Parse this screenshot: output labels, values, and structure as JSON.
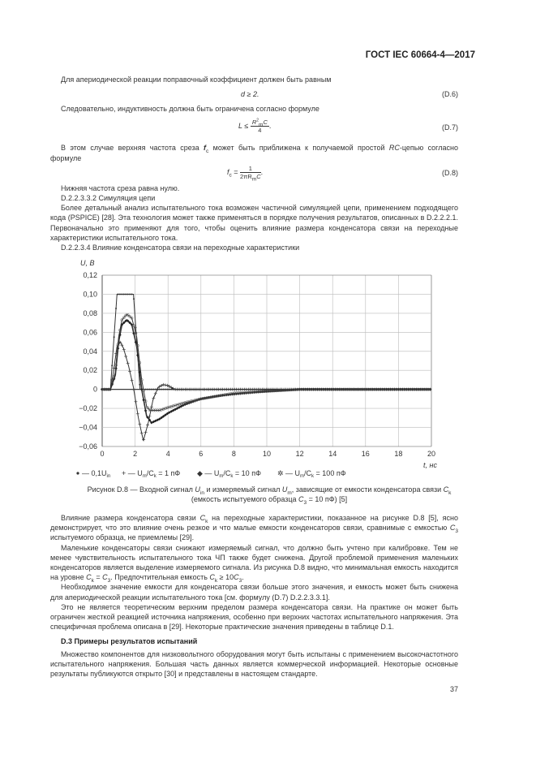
{
  "header": {
    "doc_id": "ГОСТ IEC 60664-4—2017"
  },
  "p1": "Для апериодической реакции поправочный коэффициент должен быть равным",
  "eq_d6": {
    "expr": "d ≥ 2.",
    "num": "(D.6)"
  },
  "p2": "Следовательно, индуктивность должна быть ограничена согласно формуле",
  "eq_d7": {
    "lhs": "L ≤",
    "num_r": "R",
    "num_sup": "2",
    "num_sub": "m",
    "num_c": "C",
    "den": "4",
    "num": "(D.7)"
  },
  "p3": [
    "В этом случае верхняя частота среза ",
    "f",
    "c",
    " может быть приближена к получаемой простой ",
    "RC",
    "-цепью согласно формуле"
  ],
  "eq_d8": {
    "lhs": "f",
    "lhs_sub": "c",
    "eq": " =",
    "numr": "1",
    "den_a": "2πR",
    "den_sub": "m",
    "den_c": "C",
    "num": "(D.8)"
  },
  "p4": "Нижняя частота среза равна нулю.",
  "p5": "D.2.2.3.3.2 Симуляция цепи",
  "p6": "Более детальный анализ испытательного тока возможен частичной симуляцией цепи, применением подходящего кода (PSPICE) [28]. Эта технология может также применяться в порядке получения результатов, описанных в D.2.2.2.1. Первоначально это применяют для того, чтобы оценить влияние размера конденсатора связи на переходные характеристики испытательного тока.",
  "p7": "D.2.2.3.4 Влияние конденсатора связи на переходные характеристики",
  "chart_data": {
    "type": "line",
    "ylabel": "U, В",
    "xlabel": "t, нс",
    "xlim": [
      0,
      20
    ],
    "ylim": [
      -0.06,
      0.12
    ],
    "xticks": [
      "0",
      "2",
      "4",
      "6",
      "8",
      "10",
      "12",
      "14",
      "16",
      "18",
      "20"
    ],
    "yticks": [
      "0,12",
      "0,10",
      "0,08",
      "0,06",
      "0,04",
      "0,02",
      "0",
      "−0,02",
      "−0,04",
      "−0,06"
    ],
    "grid": true,
    "legend": "bottom",
    "series": [
      {
        "name": "— 0,1U",
        "name_sub": "in",
        "marker": "dot",
        "x": [
          0,
          0.5,
          0.9,
          1.9,
          2.3,
          3,
          20
        ],
        "y": [
          0,
          0,
          0.1,
          0.1,
          0,
          0,
          0
        ]
      },
      {
        "name": "— U",
        "name_sub": "m",
        "name_rest": "/C",
        "name_sub2": "k",
        "name_end": " = 1 пФ",
        "marker": "plus",
        "x": [
          0,
          0.5,
          0.7,
          0.9,
          1.1,
          1.3,
          1.6,
          1.9,
          2.2,
          2.5,
          2.8,
          3.1,
          3.4,
          3.7,
          4.0,
          4.4,
          5,
          20
        ],
        "y": [
          0,
          0,
          0.02,
          0.045,
          0.05,
          0.043,
          0.025,
          0.002,
          -0.03,
          -0.054,
          -0.035,
          -0.01,
          0.002,
          0.005,
          0.004,
          0,
          0,
          0
        ]
      },
      {
        "name": "— U",
        "name_sub": "m",
        "name_rest": "/C",
        "name_sub2": "k",
        "name_end": " = 10 пФ",
        "marker": "diamond",
        "x": [
          0,
          0.5,
          0.8,
          1.0,
          1.2,
          1.5,
          1.8,
          2.1,
          2.4,
          2.7,
          3.0,
          3.5,
          4.0,
          5,
          6,
          7,
          8,
          10,
          12,
          20
        ],
        "y": [
          0,
          0,
          0.015,
          0.05,
          0.068,
          0.073,
          0.068,
          0.045,
          0.0,
          -0.028,
          -0.035,
          -0.031,
          -0.025,
          -0.016,
          -0.01,
          -0.007,
          -0.005,
          -0.002,
          0,
          0
        ]
      },
      {
        "name": "— U",
        "name_sub": "m",
        "name_rest": "/C",
        "name_sub2": "k",
        "name_end": " = 100 пФ",
        "marker": "star",
        "x": [
          0,
          0.5,
          0.8,
          1.0,
          1.2,
          1.5,
          1.8,
          2.1,
          2.4,
          2.7,
          2.9,
          3.5,
          4.0,
          5,
          6,
          7,
          8,
          10,
          12,
          20
        ],
        "y": [
          0,
          0,
          0.018,
          0.055,
          0.073,
          0.079,
          0.075,
          0.055,
          0.01,
          -0.018,
          -0.022,
          -0.022,
          -0.019,
          -0.014,
          -0.01,
          -0.007,
          -0.004,
          -0.002,
          0,
          0
        ]
      }
    ]
  },
  "caption": {
    "l1a": "Рисунок D.8 — Входной сигнал ",
    "U1": "U",
    "s1": "in",
    "l1b": " и измеряемый сигнал ",
    "U2": "U",
    "s2": "m",
    "l1c": ", зависящие от емкости конденсатора связи ",
    "C": "C",
    "s3": "k",
    "l2a": "(емкость испытуемого образца ",
    "C3": "C",
    "s4": "3",
    "l2b": " = 10 пФ) [5]"
  },
  "p8": [
    "Влияние размера конденсатора связи ",
    "C",
    "k",
    " на переходные характеристики, показанное на рисунке D.8 [5], ясно демонстрирует, что это влияние очень резкое и что малые емкости конденсаторов связи, сравнимые с емкостью ",
    "C",
    "3",
    " испытуемого образца, не приемлемы [29]."
  ],
  "p9": [
    "Маленькие конденсаторы связи снижают измеряемый сигнал, что должно быть учтено при калибровке. Тем не менее чувствительность испытательного тока ЧП также будет снижена. Другой проблемой применения маленьких конденсаторов является выделение измеряемого сигнала. Из рисунка D.8 видно, что минимальная емкость находится на уровне ",
    "C",
    "k",
    " = ",
    "C",
    "3",
    ". Предпочтительная емкость ",
    "C",
    "k",
    " ≥ 10",
    "C",
    "3",
    "."
  ],
  "p10": "Необходимое значение емкости для конденсатора связи больше этого значения, и емкость может быть снижена для апериодической реакции испытательного тока [см. формулу (D.7) D.2.2.3.3.1].",
  "p11": "Это не является теоретическим верхним пределом размера конденсатора связи. На практике он может быть ограничен жесткой реакцией источника напряжения, особенно при верхних частотах испытательного напряжения. Эта специфичная проблема описана в [29]. Некоторые практические значения приведены в таблице D.1.",
  "h_d3": "D.3 Примеры результатов испытаний",
  "p12": "Множество компонентов для низковольтного оборудования могут быть испытаны с применением высокочастотного испытательного напряжения. Большая часть данных является коммерческой информацией. Некоторые основные результаты публикуются открыто [30] и представлены в настоящем стандарте.",
  "page_number": "37"
}
